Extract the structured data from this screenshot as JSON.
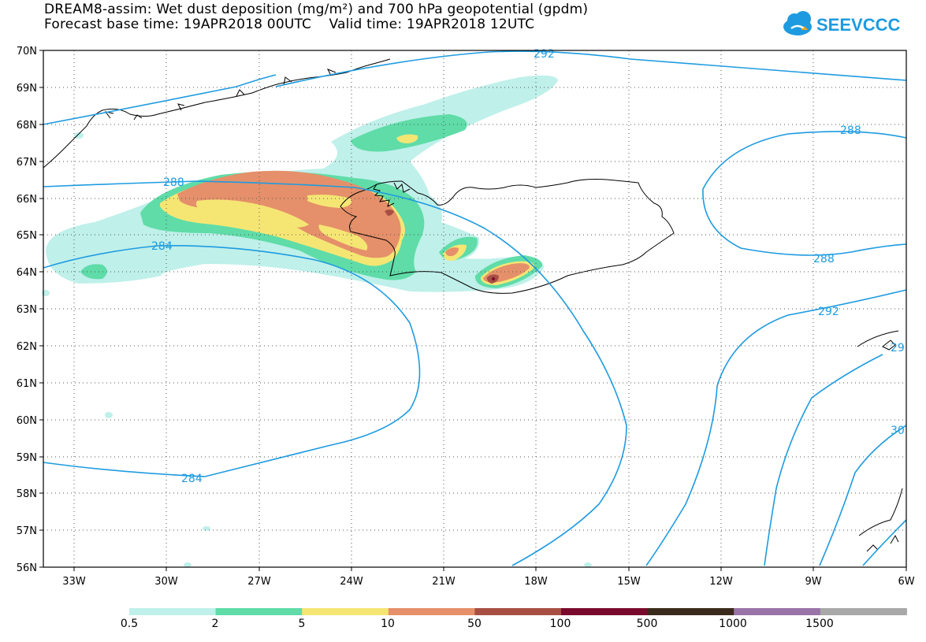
{
  "title": {
    "line1": "DREAM8-assim: Wet dust deposition (mg/m²) and 700 hPa geopotential (gpdm)",
    "line2": "Forecast base time: 19APR2018 00UTC    Valid time: 19APR2018 12UTC"
  },
  "logo": {
    "text": "SEEVCCC",
    "color": "#1e9be0",
    "icon": "cloud-icon"
  },
  "map": {
    "lat_labels": [
      "70N",
      "69N",
      "68N",
      "67N",
      "66N",
      "65N",
      "64N",
      "63N",
      "62N",
      "61N",
      "60N",
      "59N",
      "58N",
      "57N",
      "56N"
    ],
    "lon_labels": [
      "33W",
      "30W",
      "27W",
      "24W",
      "21W",
      "18W",
      "15W",
      "12W",
      "9W",
      "6W"
    ],
    "contour_labels": [
      "292",
      "288",
      "284",
      "288",
      "288",
      "292",
      "284",
      "29",
      "30"
    ],
    "contour_color": "#1e9be0"
  },
  "colorbar": {
    "colors": [
      "#bff0ea",
      "#5fdca8",
      "#f5e674",
      "#e5906a",
      "#a84f44",
      "#7a0a2c",
      "#3a2a1c",
      "#9a73a8",
      "#a8a8a8"
    ],
    "labels": [
      "0.5",
      "2",
      "5",
      "10",
      "50",
      "100",
      "500",
      "1000",
      "1500"
    ]
  }
}
